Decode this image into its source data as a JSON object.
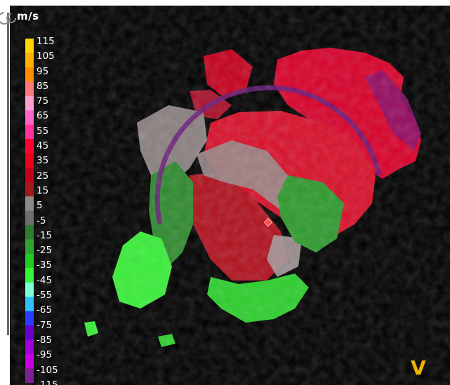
{
  "legend": {
    "units": "m/s",
    "labels": [
      "115",
      "105",
      "95",
      "85",
      "75",
      "65",
      "55",
      "45",
      "35",
      "25",
      "15",
      "5",
      "-5",
      "-15",
      "-25",
      "-35",
      "-45",
      "-55",
      "-65",
      "-75",
      "-85",
      "-95",
      "-105",
      "-115"
    ],
    "colors": [
      "#ffd200",
      "#ffb000",
      "#ff8c00",
      "#ff7a7a",
      "#ff9fd0",
      "#ff66cc",
      "#ff3399",
      "#ff0033",
      "#e8001c",
      "#c20018",
      "#a31a1a",
      "#8a8a8a",
      "#6e6e6e",
      "#2e7d2e",
      "#2fa52f",
      "#22cc22",
      "#35f535",
      "#7dffd8",
      "#30c0ff",
      "#2a3cff",
      "#6a00c8",
      "#a000d8",
      "#c800e0",
      "#7a2090"
    ]
  },
  "mode": "V",
  "icons": {
    "corner": "loop-icon"
  }
}
